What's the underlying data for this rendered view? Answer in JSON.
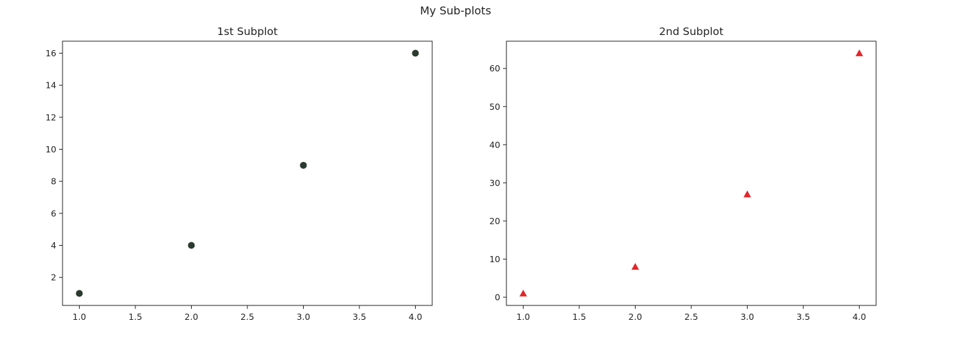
{
  "figure": {
    "title": "My Sub-plots"
  },
  "chart_data": [
    {
      "type": "scatter",
      "title": "1st Subplot",
      "xlabel": "",
      "ylabel": "",
      "x": [
        1.0,
        2.0,
        3.0,
        4.0
      ],
      "y": [
        1,
        4,
        9,
        16
      ],
      "xlim": [
        0.85,
        4.15
      ],
      "ylim": [
        0.25,
        16.75
      ],
      "xticks": [
        1.0,
        1.5,
        2.0,
        2.5,
        3.0,
        3.5,
        4.0
      ],
      "xtick_labels": [
        "1.0",
        "1.5",
        "2.0",
        "2.5",
        "3.0",
        "3.5",
        "4.0"
      ],
      "yticks": [
        2,
        4,
        6,
        8,
        10,
        12,
        14,
        16
      ],
      "ytick_labels": [
        "2",
        "4",
        "6",
        "8",
        "10",
        "12",
        "14",
        "16"
      ],
      "marker": "circle",
      "color": "#2b3a2e",
      "grid": false
    },
    {
      "type": "scatter",
      "title": "2nd Subplot",
      "xlabel": "",
      "ylabel": "",
      "x": [
        1.0,
        2.0,
        3.0,
        4.0
      ],
      "y": [
        1,
        8,
        27,
        64
      ],
      "xlim": [
        0.85,
        4.15
      ],
      "ylim": [
        -2.15,
        67.15
      ],
      "xticks": [
        1.0,
        1.5,
        2.0,
        2.5,
        3.0,
        3.5,
        4.0
      ],
      "xtick_labels": [
        "1.0",
        "1.5",
        "2.0",
        "2.5",
        "3.0",
        "3.5",
        "4.0"
      ],
      "yticks": [
        0,
        10,
        20,
        30,
        40,
        50,
        60
      ],
      "ytick_labels": [
        "0",
        "10",
        "20",
        "30",
        "40",
        "50",
        "60"
      ],
      "marker": "triangle",
      "color": "#e3262b",
      "grid": false
    }
  ]
}
